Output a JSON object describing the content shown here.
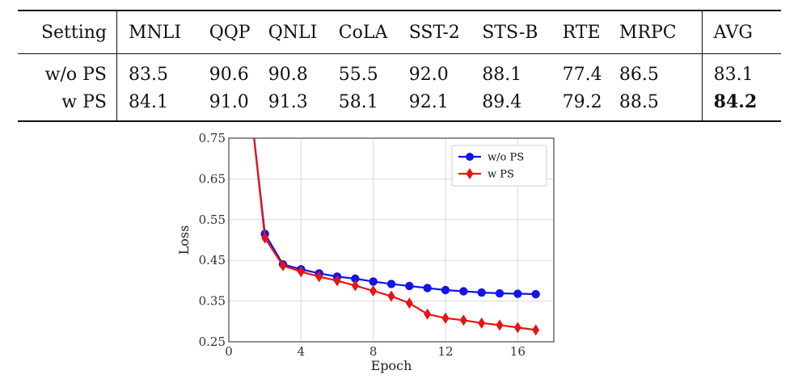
{
  "table": {
    "columns": [
      "Setting",
      "MNLI",
      "QQP",
      "QNLI",
      "CoLA",
      "SST-2",
      "STS-B",
      "RTE",
      "MRPC",
      "AVG"
    ],
    "rows": [
      {
        "setting": "w/o PS",
        "values": [
          "83.5",
          "90.6",
          "90.8",
          "55.5",
          "92.0",
          "88.1",
          "77.4",
          "86.5"
        ],
        "avg": "83.1"
      },
      {
        "setting": "w PS",
        "values": [
          "84.1",
          "91.0",
          "91.3",
          "58.1",
          "92.1",
          "89.4",
          "79.2",
          "88.5"
        ],
        "avg": "84.2"
      }
    ]
  },
  "chart_data": {
    "type": "line",
    "xlabel": "Epoch",
    "ylabel": "Loss",
    "xlim": [
      0,
      18
    ],
    "ylim": [
      0.25,
      0.75
    ],
    "xticks": [
      "0",
      "4",
      "8",
      "12",
      "16"
    ],
    "yticks": [
      "0.25",
      "0.35",
      "0.45",
      "0.55",
      "0.65",
      "0.75"
    ],
    "grid": true,
    "legend_position": "top-right",
    "series": [
      {
        "name": "w/o PS",
        "color": "#1414e6",
        "marker": "circle",
        "x": [
          1.4,
          2,
          3,
          4,
          5,
          6,
          7,
          8,
          9,
          10,
          11,
          12,
          13,
          14,
          15,
          16,
          17
        ],
        "y": [
          0.75,
          0.515,
          0.44,
          0.428,
          0.418,
          0.41,
          0.405,
          0.398,
          0.392,
          0.387,
          0.382,
          0.377,
          0.374,
          0.371,
          0.369,
          0.368,
          0.367
        ]
      },
      {
        "name": "w PS",
        "color": "#e61414",
        "marker": "diamond",
        "x": [
          1.4,
          2,
          3,
          4,
          5,
          6,
          7,
          8,
          9,
          10,
          11,
          12,
          13,
          14,
          15,
          16,
          17
        ],
        "y": [
          0.75,
          0.505,
          0.437,
          0.422,
          0.41,
          0.4,
          0.388,
          0.375,
          0.362,
          0.345,
          0.318,
          0.308,
          0.303,
          0.296,
          0.291,
          0.285,
          0.279
        ]
      }
    ]
  }
}
